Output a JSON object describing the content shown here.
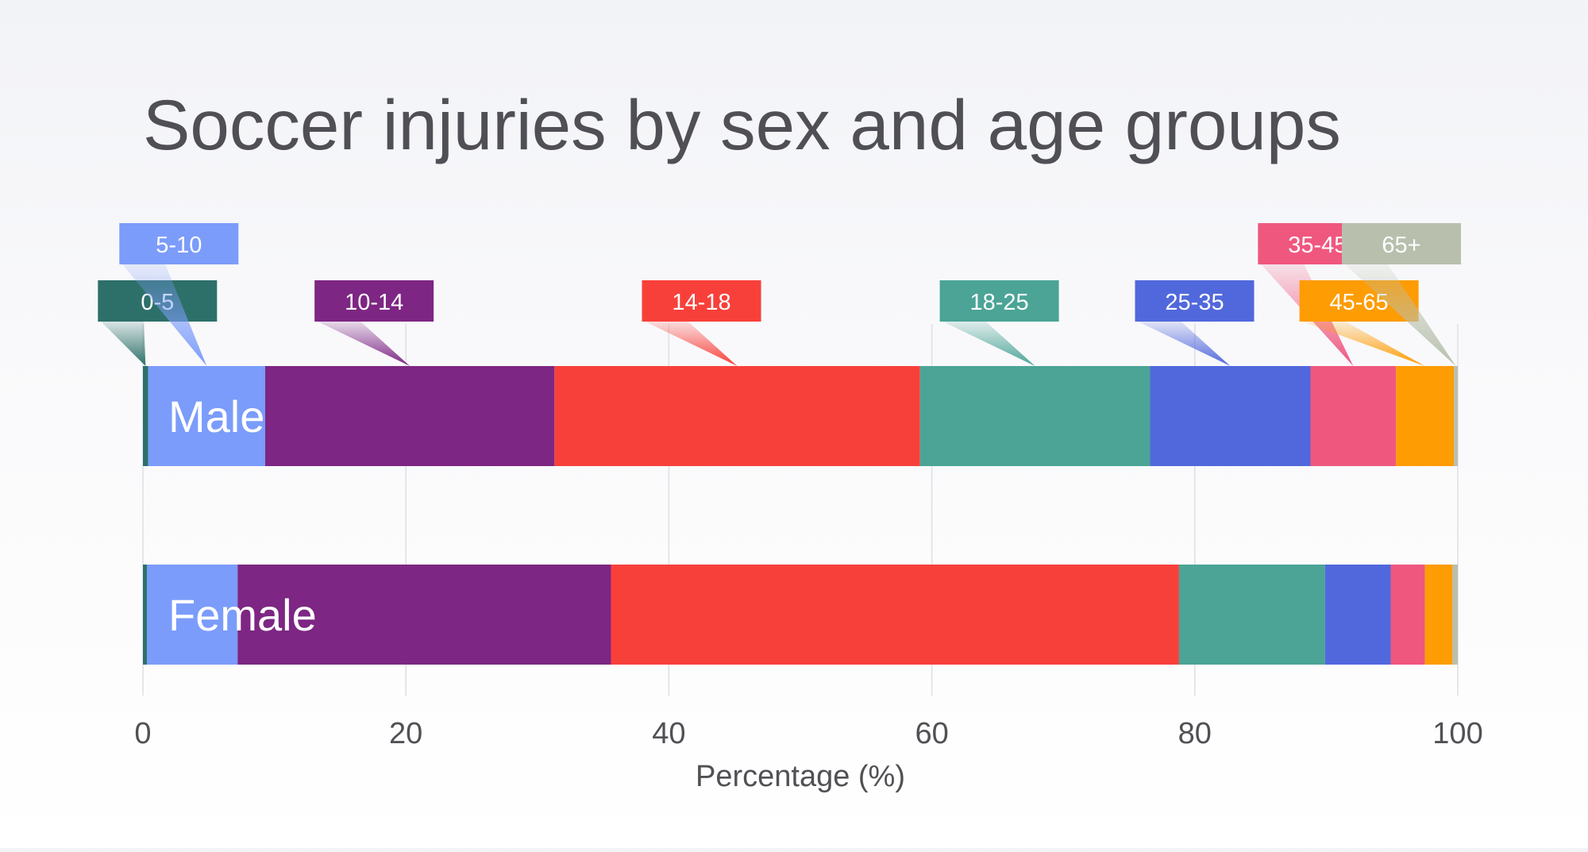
{
  "chart_data": {
    "type": "bar",
    "orientation": "horizontal",
    "stacked": true,
    "title": "Soccer injuries by sex and age groups",
    "xlabel": "Percentage (%)",
    "ylabel": "",
    "xlim": [
      0,
      100
    ],
    "xticks": [
      "0",
      "20",
      "40",
      "60",
      "80",
      "100"
    ],
    "grid": "vertical",
    "categories": [
      "Male",
      "Female"
    ],
    "series": [
      {
        "name": "0-5",
        "color": "#2d7069",
        "values": [
          0.4,
          0.3
        ]
      },
      {
        "name": "5-10",
        "color": "#7b9cfa",
        "values": [
          8.9,
          6.9
        ]
      },
      {
        "name": "10-14",
        "color": "#7d2683",
        "values": [
          22.0,
          28.4
        ]
      },
      {
        "name": "14-18",
        "color": "#f8403a",
        "values": [
          27.8,
          43.2
        ]
      },
      {
        "name": "18-25",
        "color": "#4ba496",
        "values": [
          17.5,
          11.1
        ]
      },
      {
        "name": "25-35",
        "color": "#5168dc",
        "values": [
          12.2,
          5.0
        ]
      },
      {
        "name": "35-45",
        "color": "#ef577f",
        "values": [
          6.5,
          2.6
        ]
      },
      {
        "name": "45-65",
        "color": "#fe9c04",
        "values": [
          4.4,
          2.1
        ]
      },
      {
        "name": "65+",
        "color": "#b8c0ad",
        "values": [
          0.3,
          0.4
        ]
      }
    ]
  }
}
